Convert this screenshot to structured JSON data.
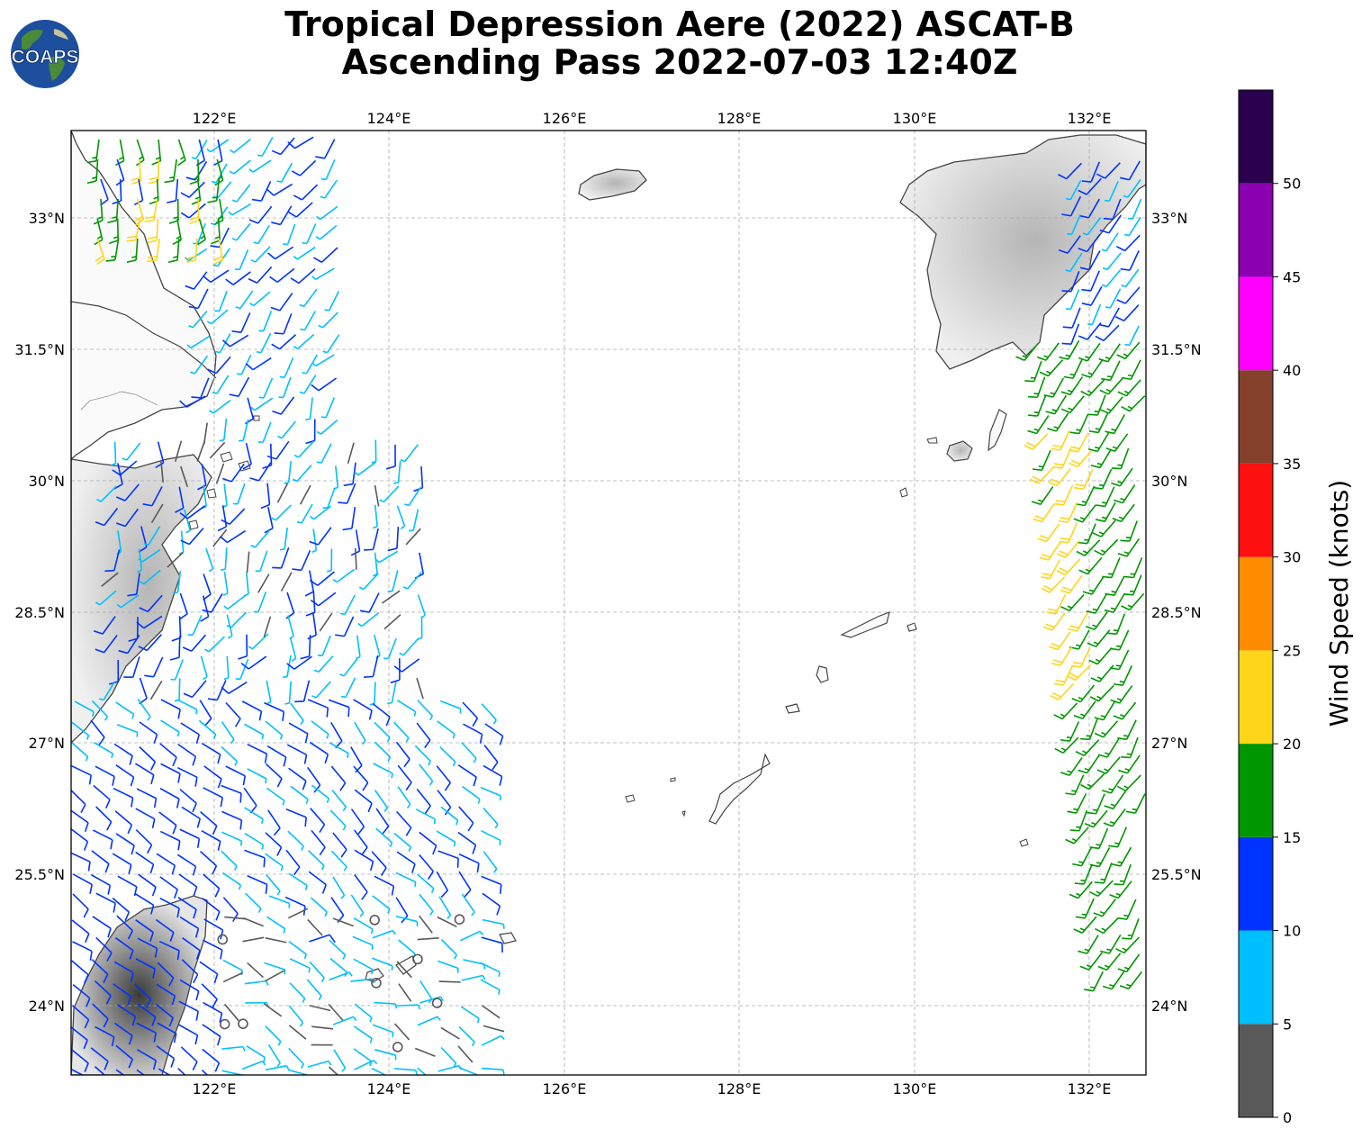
{
  "title": {
    "line1": "Tropical Depression Aere (2022) ASCAT-B",
    "line2": "Ascending Pass 2022-07-03 12:40Z"
  },
  "logo": {
    "text": "COAPS"
  },
  "map": {
    "lon_ticks": [
      "122°E",
      "124°E",
      "126°E",
      "128°E",
      "130°E",
      "132°E"
    ],
    "lat_ticks": [
      "33°N",
      "31.5°N",
      "30°N",
      "28.5°N",
      "27°N",
      "25.5°N",
      "24°N"
    ],
    "lon_range": [
      120.35,
      132.65
    ],
    "lat_range": [
      23.2,
      34.0
    ],
    "gridlines": true
  },
  "colorbar": {
    "label": "Wind Speed (knots)",
    "ticks": [
      "0",
      "5",
      "10",
      "15",
      "20",
      "25",
      "30",
      "35",
      "40",
      "45",
      "50"
    ],
    "bins": [
      {
        "min": 0,
        "max": 5,
        "color": "#595959"
      },
      {
        "min": 5,
        "max": 10,
        "color": "#00bfff"
      },
      {
        "min": 10,
        "max": 15,
        "color": "#0033ff"
      },
      {
        "min": 15,
        "max": 20,
        "color": "#009600"
      },
      {
        "min": 20,
        "max": 25,
        "color": "#ffd51a"
      },
      {
        "min": 25,
        "max": 30,
        "color": "#ff8c00"
      },
      {
        "min": 30,
        "max": 35,
        "color": "#ff1010"
      },
      {
        "min": 35,
        "max": 40,
        "color": "#84402b"
      },
      {
        "min": 40,
        "max": 45,
        "color": "#ff00ff"
      },
      {
        "min": 45,
        "max": 50,
        "color": "#8b00b0"
      },
      {
        "min": 50,
        "max": 55,
        "color": "#2a004f"
      }
    ]
  }
}
